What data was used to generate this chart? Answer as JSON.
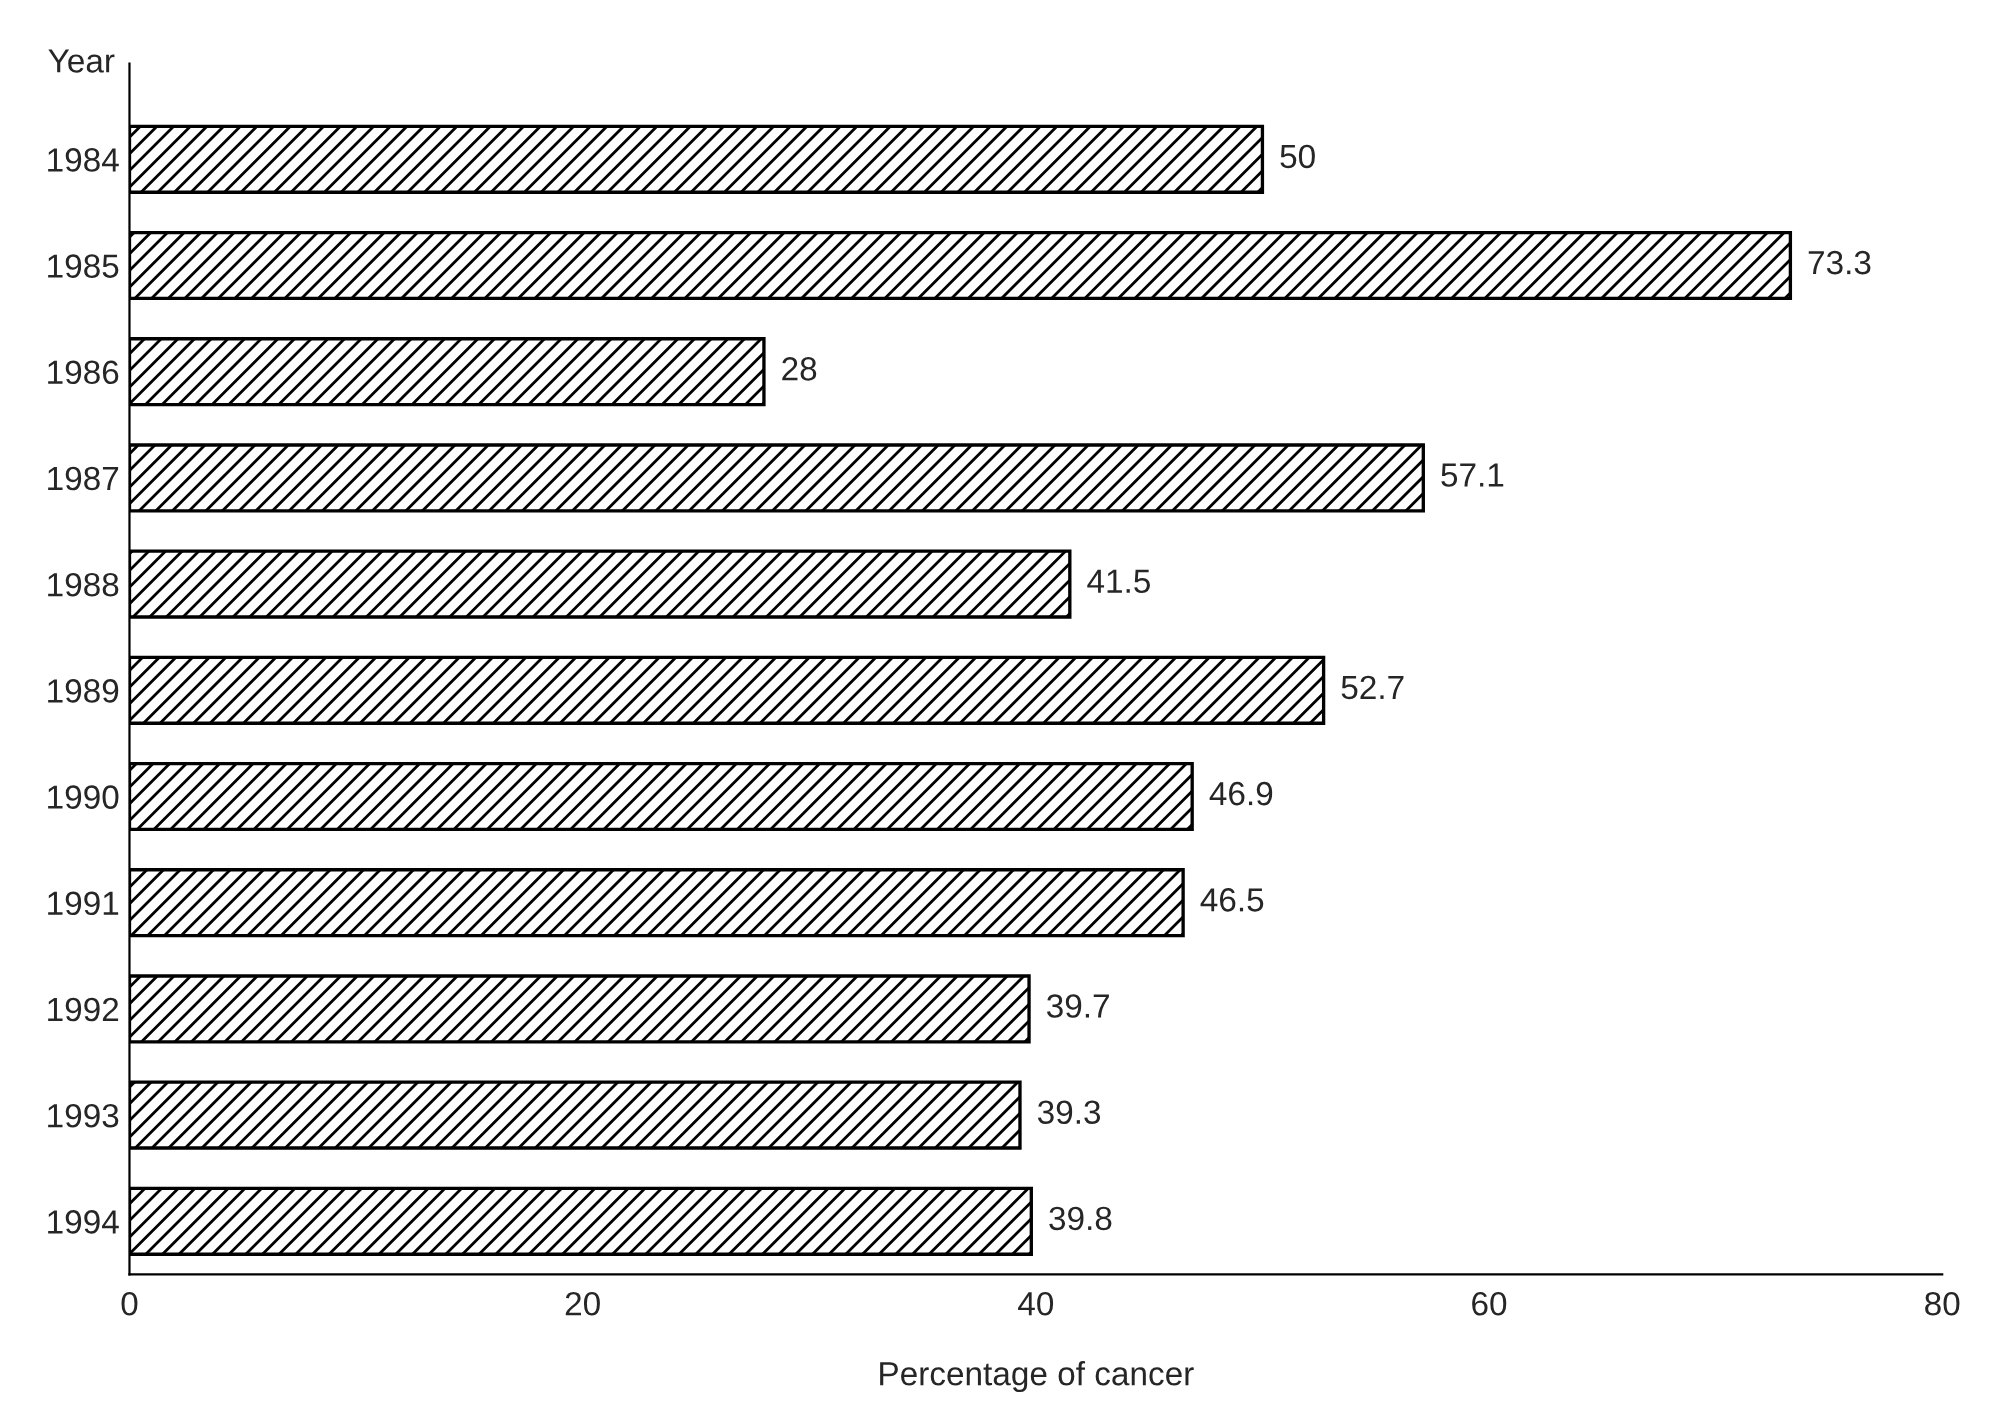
{
  "chart_data": {
    "type": "bar",
    "orientation": "horizontal",
    "ylabel": "Year",
    "xlabel": "Percentage of cancer",
    "categories": [
      "1984",
      "1985",
      "1986",
      "1987",
      "1988",
      "1989",
      "1990",
      "1991",
      "1992",
      "1993",
      "1994"
    ],
    "values": [
      50,
      73.3,
      28,
      57.1,
      41.5,
      52.7,
      46.9,
      46.5,
      39.7,
      39.3,
      39.8
    ],
    "color": "#000000",
    "xlim": [
      0,
      80
    ],
    "xticks": [
      0,
      20,
      40,
      60,
      80
    ],
    "data_labels": true,
    "grid": false,
    "legend": false
  }
}
